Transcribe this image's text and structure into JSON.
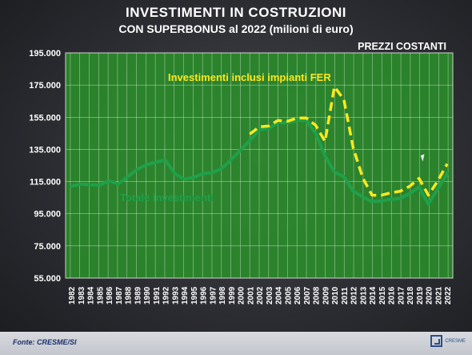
{
  "slide": {
    "title": "INVESTIMENTI IN COSTRUZIONI",
    "subtitle": "CON SUPERBONUS al 2022 (milioni di euro)",
    "note": "PREZZI COSTANTI",
    "source": "Fonte: CRESME/SI",
    "logo_text": "CRESME"
  },
  "colors": {
    "plot_background": "#2a8a2a",
    "grid": "#ffffff",
    "series_total": "#1fa04a",
    "series_fer": "#ffe81e",
    "text": "#ffffff"
  },
  "chart_data": {
    "type": "line",
    "title": "INVESTIMENTI IN COSTRUZIONI",
    "subtitle": "CON SUPERBONUS al 2022 (milioni di euro)",
    "xlabel": "",
    "ylabel": "",
    "ylim": [
      55000,
      195000
    ],
    "yticks": [
      55000,
      75000,
      95000,
      115000,
      135000,
      155000,
      175000,
      195000
    ],
    "ytick_labels": [
      "55.000",
      "75.000",
      "95.000",
      "115.000",
      "135.000",
      "155.000",
      "175.000",
      "195.000"
    ],
    "grid": true,
    "x": [
      "1982",
      "1983",
      "1984",
      "1985",
      "1986",
      "1987",
      "1988",
      "1989",
      "1990",
      "1991",
      "1992",
      "1993",
      "1994",
      "1995",
      "1996",
      "1997",
      "1998",
      "1999",
      "2000",
      "2001",
      "2002",
      "2003",
      "2004",
      "2005",
      "2006",
      "2007",
      "2008",
      "2009",
      "2010",
      "2011",
      "2012",
      "2013",
      "2014",
      "2015",
      "2016",
      "2017",
      "2018",
      "2019",
      "2020",
      "2021",
      "2022"
    ],
    "series": [
      {
        "name": "Totale investimenti",
        "style": "solid",
        "values": [
          112000,
          113500,
          113000,
          112800,
          115500,
          113500,
          118000,
          122500,
          125500,
          127000,
          128500,
          120000,
          116500,
          117500,
          120000,
          120500,
          123000,
          128500,
          134500,
          140500,
          147000,
          148000,
          151500,
          151500,
          153000,
          153000,
          145000,
          131000,
          121000,
          118000,
          109000,
          105500,
          102500,
          103000,
          104000,
          104500,
          107500,
          111500,
          101000,
          110500,
          120000
        ]
      },
      {
        "name": "Investimenti inclusi impianti FER",
        "style": "dashed",
        "values": [
          null,
          null,
          null,
          null,
          null,
          null,
          null,
          null,
          null,
          null,
          null,
          null,
          null,
          null,
          null,
          null,
          null,
          null,
          null,
          144500,
          149000,
          149500,
          153000,
          152500,
          154500,
          154500,
          150000,
          140000,
          174000,
          166000,
          136000,
          117500,
          106500,
          106500,
          108000,
          109000,
          112000,
          117000,
          106500,
          115500,
          126000
        ]
      }
    ],
    "annotations": [
      {
        "text": "Investimenti inclusi impianti FER",
        "series": 1
      },
      {
        "text": "Totale investimenti",
        "series": 0
      }
    ]
  }
}
